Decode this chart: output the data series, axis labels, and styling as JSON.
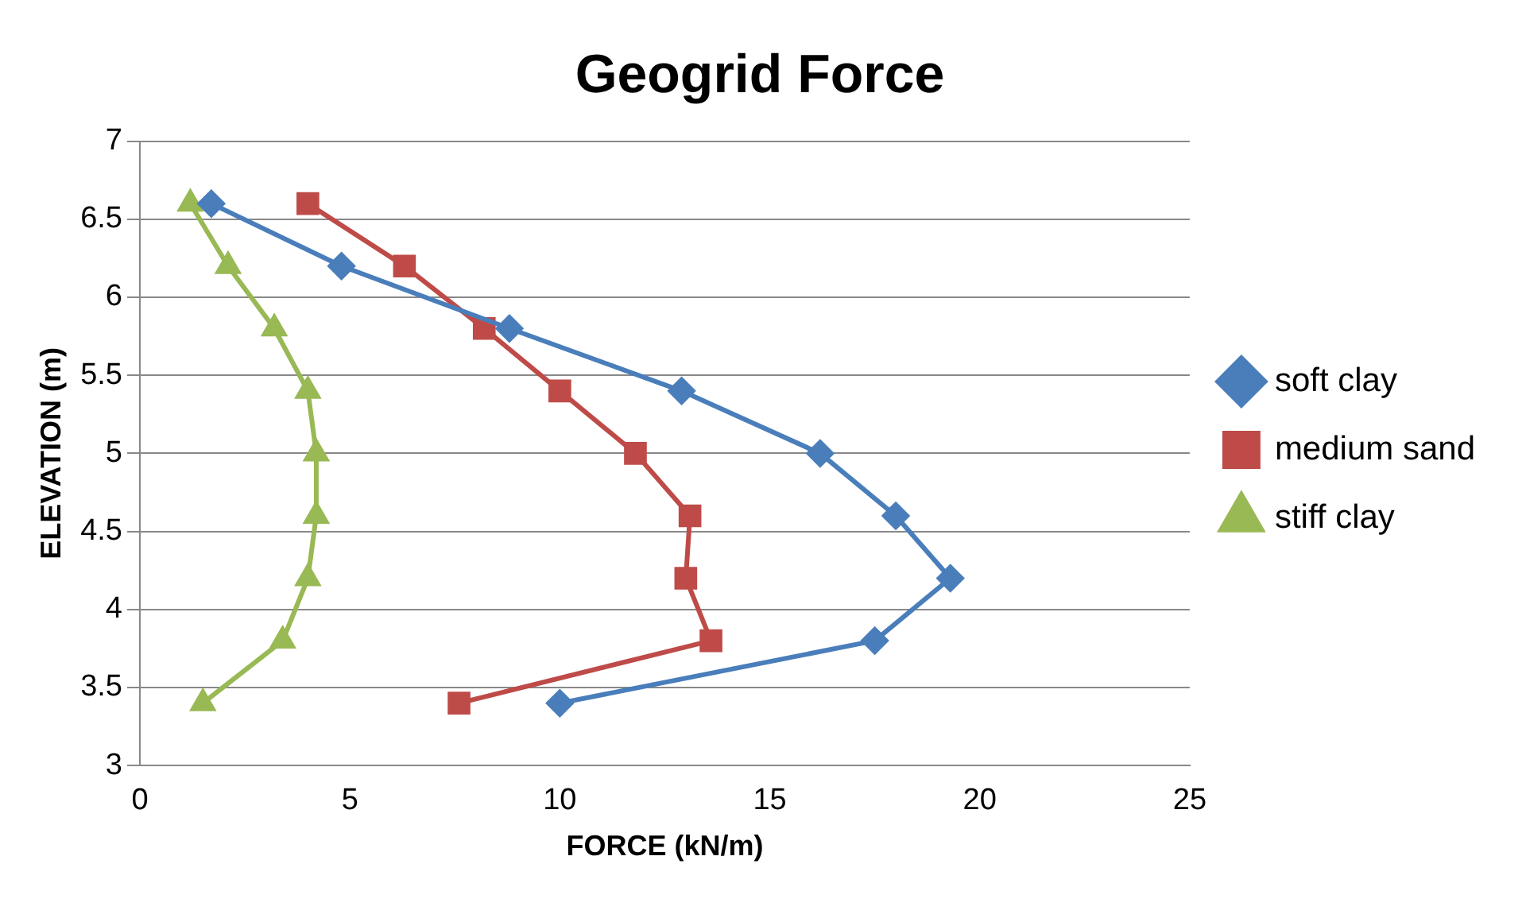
{
  "chart_data": {
    "type": "line",
    "title": "Geogrid Force",
    "xlabel": "FORCE (kN/m)",
    "ylabel": "ELEVATION (m)",
    "xlim": [
      0,
      25
    ],
    "xticks": [
      0,
      5,
      10,
      15,
      20,
      25
    ],
    "ylim": [
      3,
      7
    ],
    "yticks": [
      3,
      3.5,
      4,
      4.5,
      5,
      5.5,
      6,
      6.5,
      7
    ],
    "grid": "y",
    "legend": "right",
    "series": [
      {
        "name": "soft clay",
        "color": "#4a7ebb",
        "marker": "diamond",
        "x": [
          1.7,
          4.8,
          8.8,
          12.9,
          16.2,
          18.0,
          19.3,
          17.5,
          10.0
        ],
        "values": [
          6.6,
          6.2,
          5.8,
          5.4,
          5.0,
          4.6,
          4.2,
          3.8,
          3.4
        ]
      },
      {
        "name": "medium sand",
        "color": "#be4b48",
        "marker": "square",
        "x": [
          4.0,
          6.3,
          8.2,
          10.0,
          11.8,
          13.1,
          13.0,
          13.6,
          7.6
        ],
        "values": [
          6.6,
          6.2,
          5.8,
          5.4,
          5.0,
          4.6,
          4.2,
          3.8,
          3.4
        ]
      },
      {
        "name": "stiff clay",
        "color": "#98b954",
        "marker": "triangle",
        "x": [
          1.2,
          2.1,
          3.2,
          4.0,
          4.2,
          4.2,
          4.0,
          3.4,
          1.5
        ],
        "values": [
          6.6,
          6.2,
          5.8,
          5.4,
          5.0,
          4.6,
          4.2,
          3.8,
          3.4
        ]
      }
    ]
  }
}
